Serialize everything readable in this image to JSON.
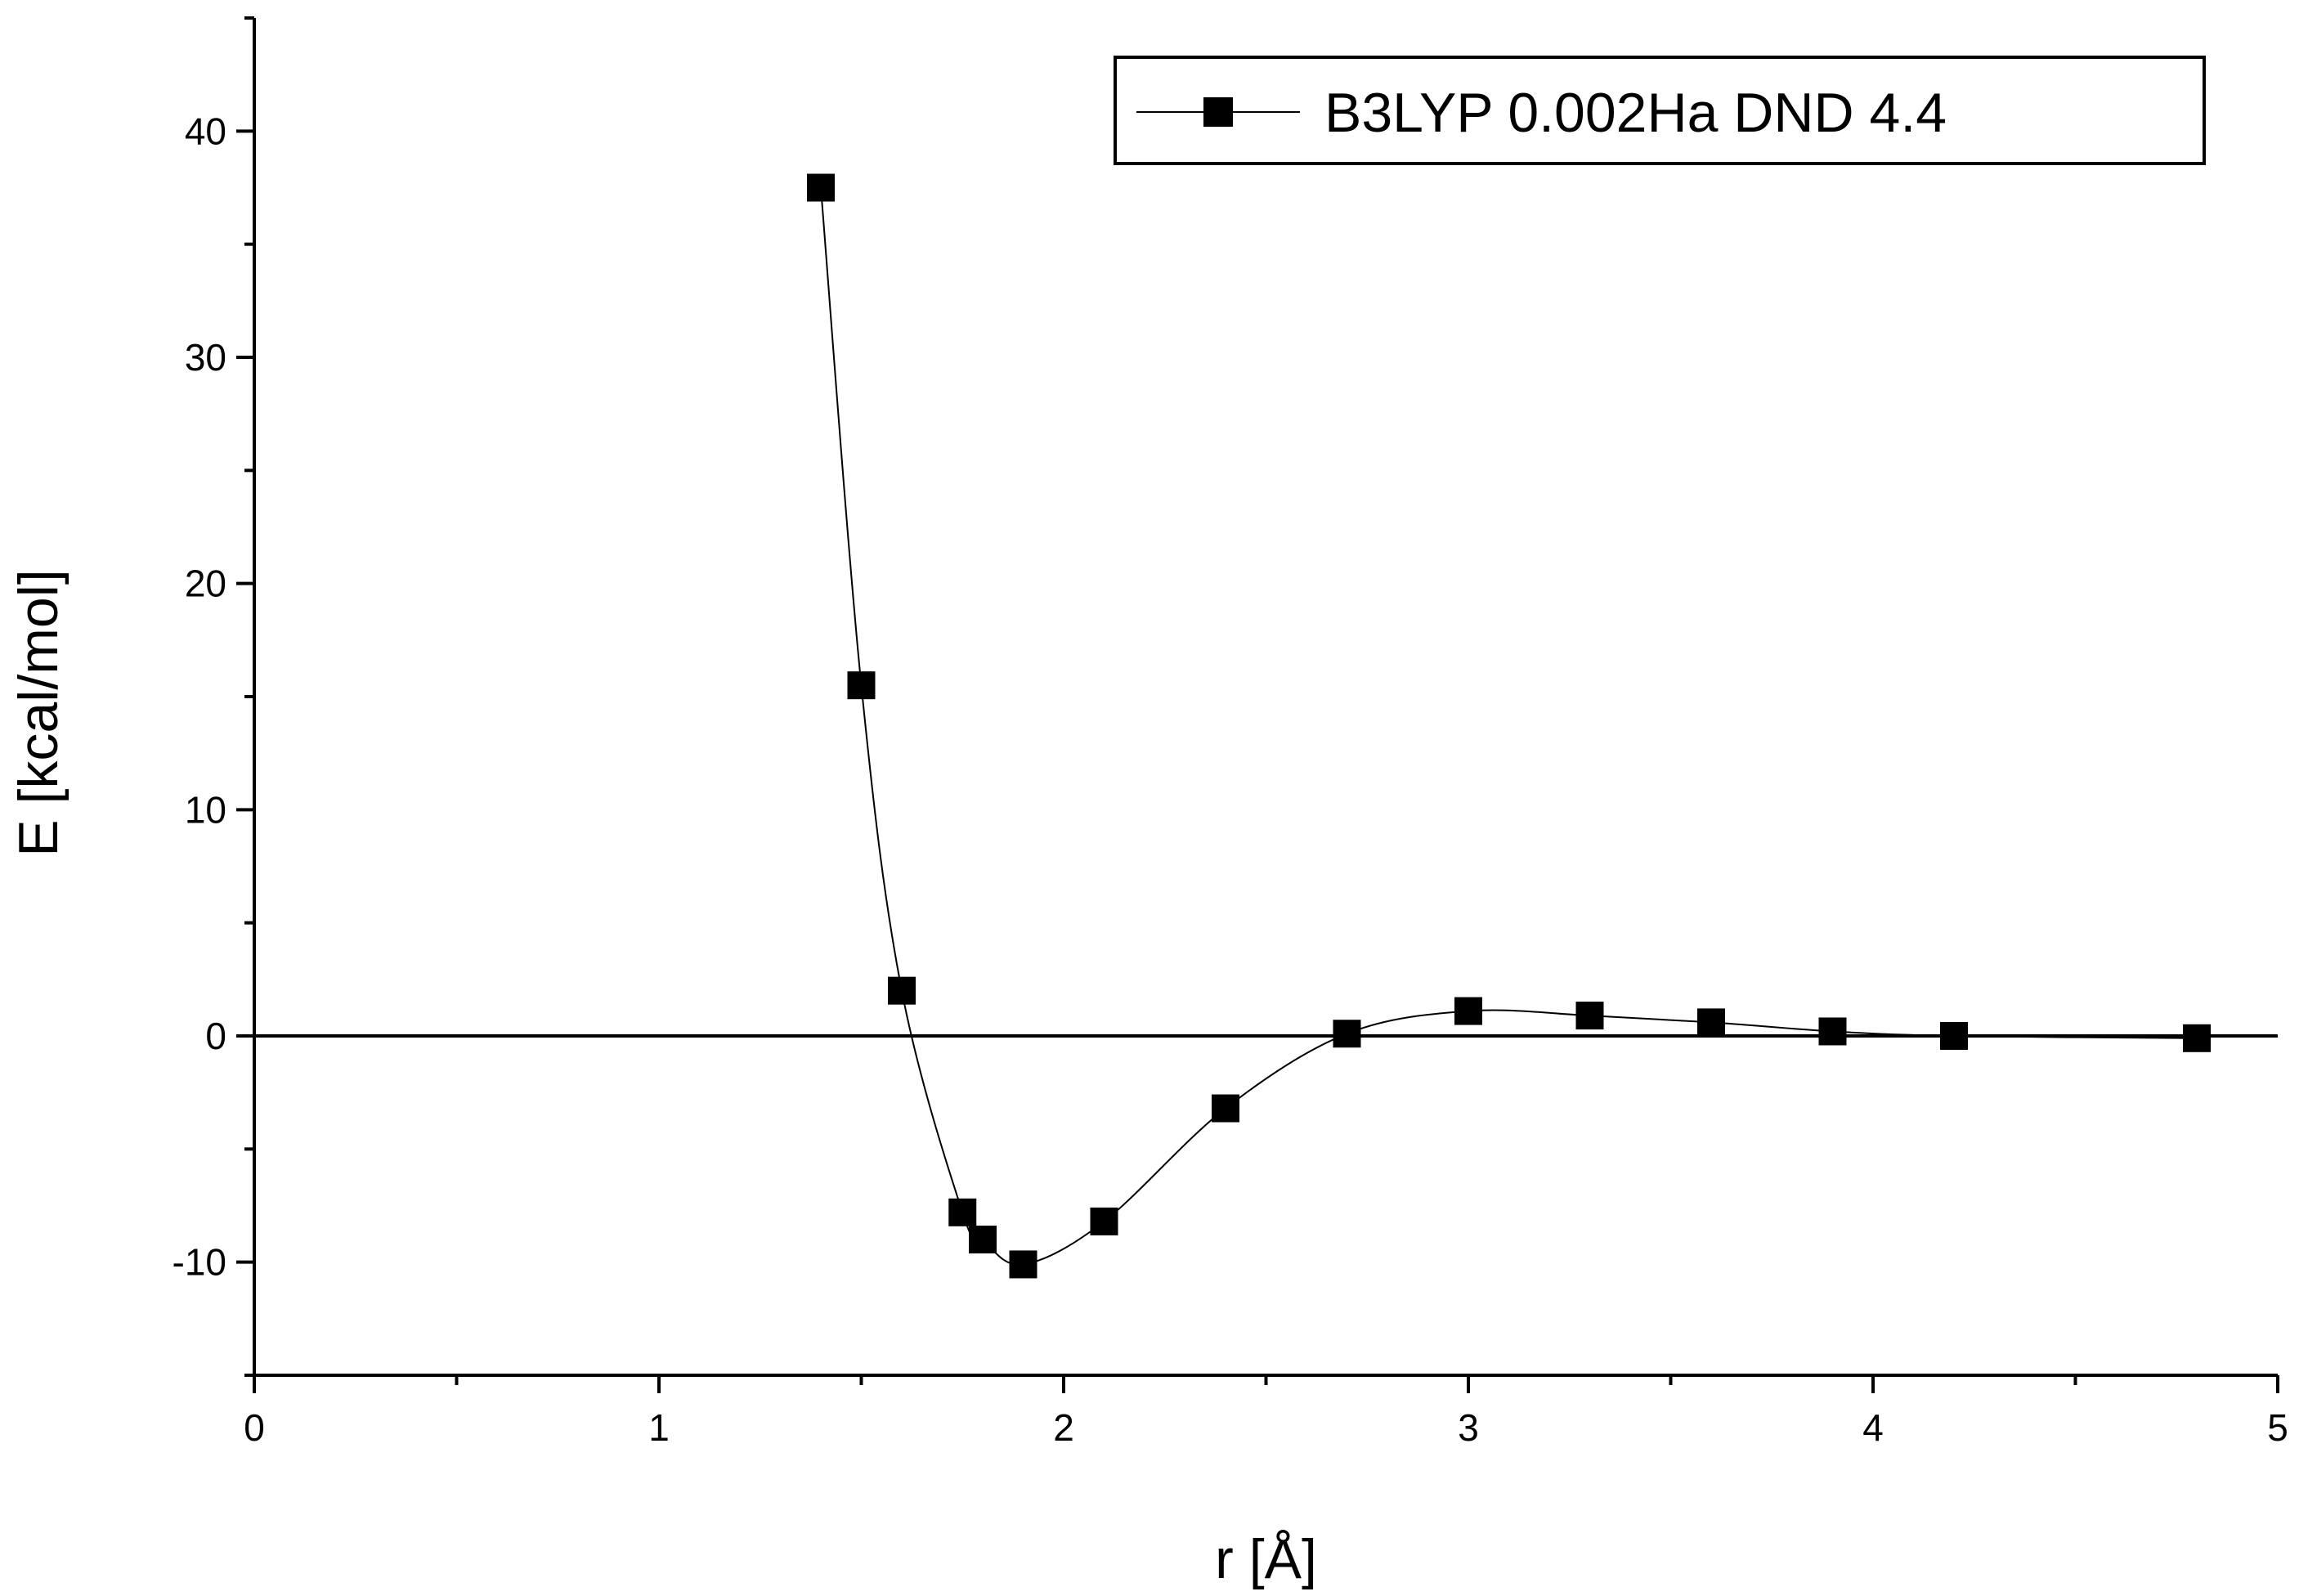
{
  "chart_data": {
    "type": "scatter",
    "title": "",
    "xlabel": "r [Å]",
    "ylabel": "E [kcal/mol]",
    "xlim": [
      0,
      5
    ],
    "ylim": [
      -15,
      45
    ],
    "xticks": [
      0,
      1,
      2,
      3,
      4,
      5
    ],
    "yticks": [
      -10,
      0,
      10,
      20,
      30,
      40
    ],
    "grid": false,
    "legend_position": "top-right",
    "reference_line_y": 0,
    "series": [
      {
        "name": "B3LYP 0.002Ha DND 4.4",
        "marker": "square",
        "line": "smooth",
        "color": "#000000",
        "x": [
          1.4,
          1.5,
          1.6,
          1.75,
          1.8,
          1.9,
          2.1,
          2.4,
          2.7,
          3.0,
          3.3,
          3.6,
          3.9,
          4.2,
          4.8
        ],
        "y": [
          37.5,
          15.5,
          2.0,
          -7.8,
          -9.0,
          -10.1,
          -8.2,
          -3.2,
          0.1,
          1.1,
          0.9,
          0.6,
          0.2,
          0.0,
          -0.1
        ]
      }
    ]
  }
}
